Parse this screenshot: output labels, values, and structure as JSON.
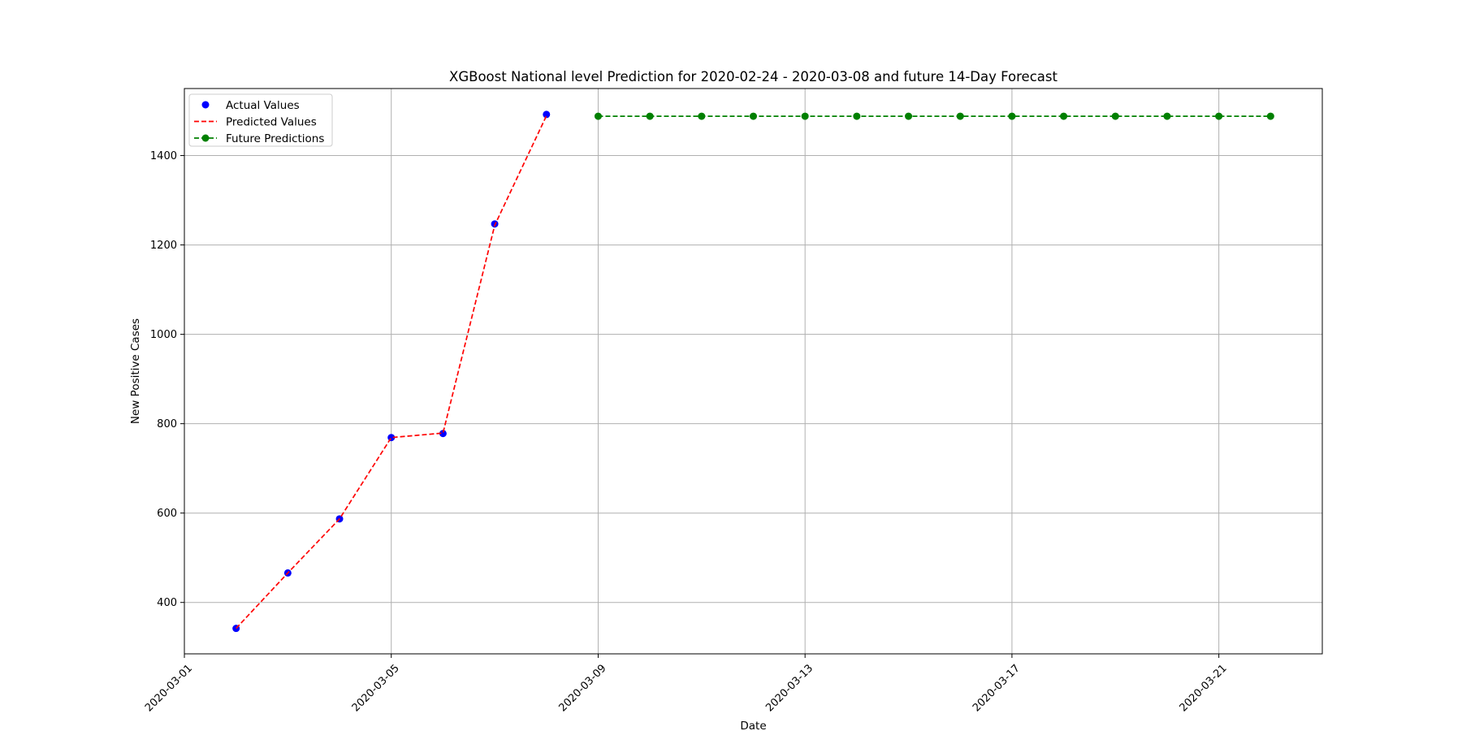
{
  "chart_data": {
    "type": "line",
    "title": "XGBoost National level Prediction for 2020-02-24 - 2020-03-08 and future 14-Day Forecast",
    "xlabel": "Date",
    "ylabel": "New Positive Cases",
    "xlim": [
      "2020-03-01",
      "2020-03-23"
    ],
    "ylim": [
      285,
      1550
    ],
    "x_ticks": [
      "2020-03-01",
      "2020-03-05",
      "2020-03-09",
      "2020-03-13",
      "2020-03-17",
      "2020-03-21"
    ],
    "y_ticks": [
      400,
      600,
      800,
      1000,
      1200,
      1400
    ],
    "grid": true,
    "legend_position": "top-left",
    "series": [
      {
        "name": "Actual Values",
        "style": "scatter",
        "color": "#0000ff",
        "x": [
          "2020-03-02",
          "2020-03-03",
          "2020-03-04",
          "2020-03-05",
          "2020-03-06",
          "2020-03-07",
          "2020-03-08"
        ],
        "values": [
          342,
          466,
          587,
          769,
          778,
          1247,
          1492
        ]
      },
      {
        "name": "Predicted Values",
        "style": "dashed-line",
        "color": "#ff0000",
        "x": [
          "2020-03-02",
          "2020-03-03",
          "2020-03-04",
          "2020-03-05",
          "2020-03-06",
          "2020-03-07",
          "2020-03-08"
        ],
        "values": [
          342,
          466,
          587,
          769,
          779,
          1244,
          1489
        ]
      },
      {
        "name": "Future Predictions",
        "style": "dashed-line-markers",
        "color": "#008000",
        "x": [
          "2020-03-09",
          "2020-03-10",
          "2020-03-11",
          "2020-03-12",
          "2020-03-13",
          "2020-03-14",
          "2020-03-15",
          "2020-03-16",
          "2020-03-17",
          "2020-03-18",
          "2020-03-19",
          "2020-03-20",
          "2020-03-21",
          "2020-03-22"
        ],
        "values": [
          1488,
          1488,
          1488,
          1488,
          1488,
          1488,
          1488,
          1488,
          1488,
          1488,
          1488,
          1488,
          1488,
          1488
        ]
      }
    ]
  }
}
